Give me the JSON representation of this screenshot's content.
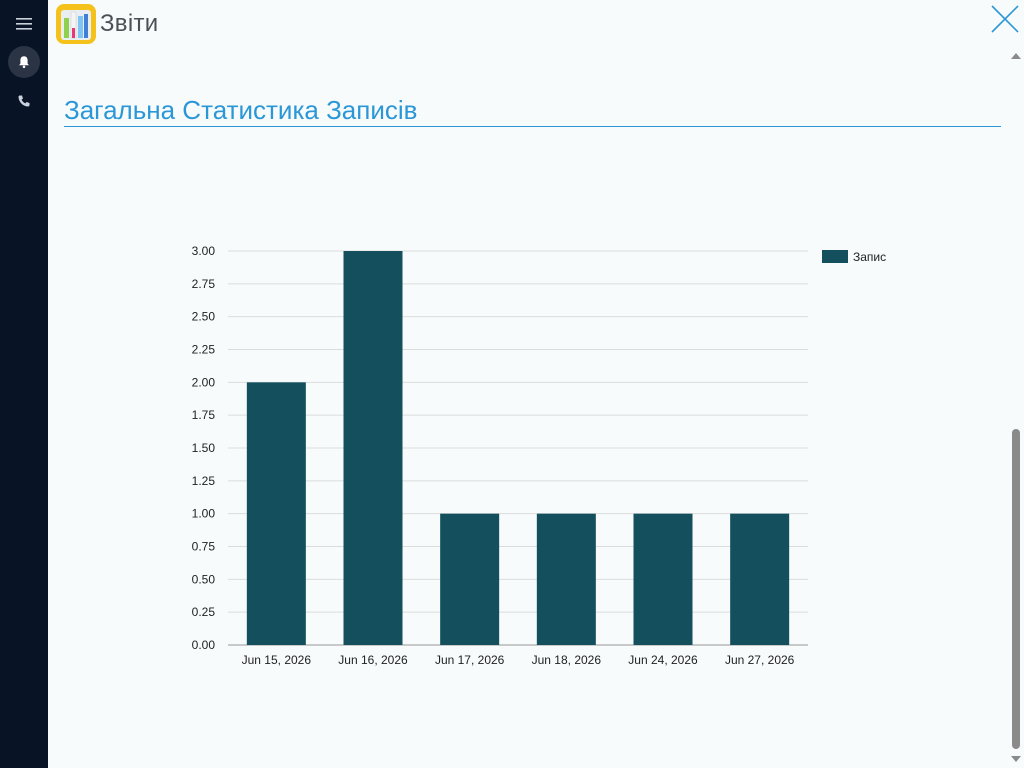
{
  "header": {
    "title": "Звіти"
  },
  "sidebar": {
    "items": [
      {
        "icon": "menu-icon"
      },
      {
        "icon": "bell-icon"
      },
      {
        "icon": "phone-icon"
      }
    ]
  },
  "section": {
    "title": "Загальна Статистика Записів"
  },
  "colors": {
    "accent": "#2b97d6",
    "bar": "#134f5c",
    "sidebar_bg": "#081426"
  },
  "chart_data": {
    "type": "bar",
    "categories": [
      "Jun 15, 2026",
      "Jun 16, 2026",
      "Jun 17, 2026",
      "Jun 18, 2026",
      "Jun 24, 2026",
      "Jun 27, 2026"
    ],
    "series": [
      {
        "name": "Запис",
        "values": [
          2,
          3,
          1,
          1,
          1,
          1
        ]
      }
    ],
    "ylim": [
      0,
      3
    ],
    "yticks": [
      "0.00",
      "0.25",
      "0.50",
      "0.75",
      "1.00",
      "1.25",
      "1.50",
      "1.75",
      "2.00",
      "2.25",
      "2.50",
      "2.75",
      "3.00"
    ],
    "grid": true,
    "legend": "top-right"
  }
}
